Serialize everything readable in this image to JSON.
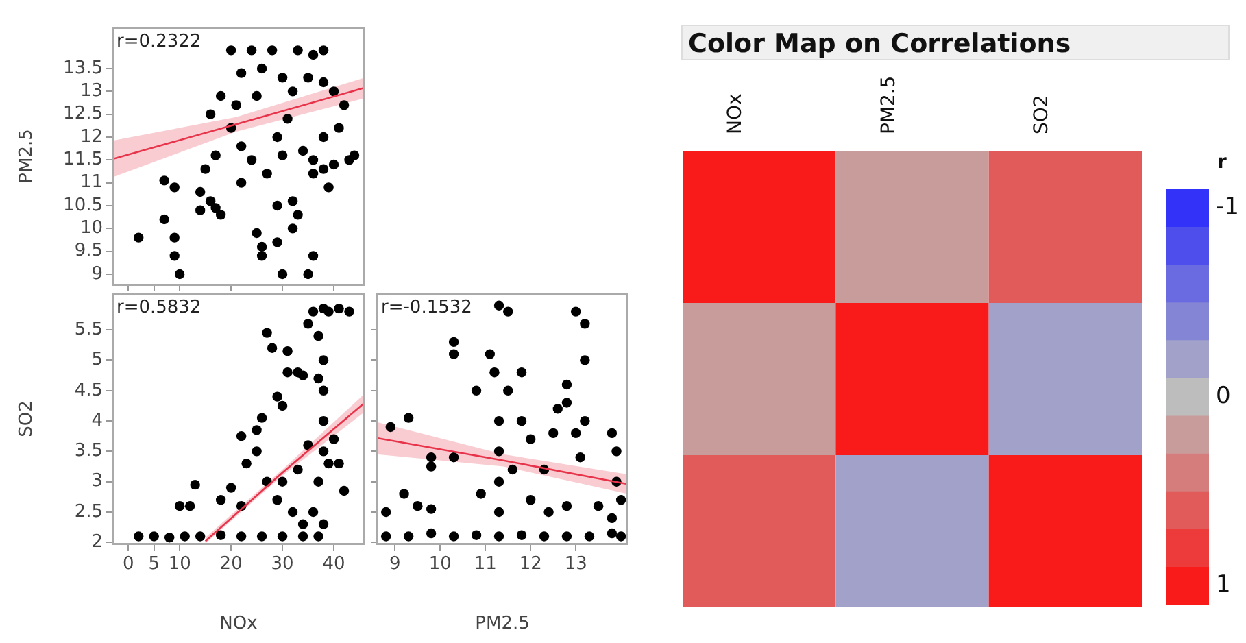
{
  "chart_data": [
    {
      "type": "scatter",
      "ylabel": "PM2.5",
      "annotations": [
        "r=0.2322"
      ],
      "tick_labels": "y",
      "xlim": [
        -3.1,
        46
      ],
      "xticks": [
        0,
        5,
        10,
        20,
        30,
        40
      ],
      "ylim": [
        8.76,
        14.4
      ],
      "yticks": [
        9,
        9.5,
        10,
        10.5,
        11,
        11.5,
        12,
        12.5,
        13,
        13.5
      ],
      "series": [
        {
          "type": "scatter",
          "marker": "circle",
          "color": "#000000",
          "x": [
            2,
            7,
            7,
            9,
            9,
            9,
            10,
            14,
            14,
            16,
            17,
            18,
            15,
            17,
            16,
            18,
            20,
            21,
            22,
            24,
            22,
            25,
            26,
            26,
            29,
            30,
            35,
            36,
            32,
            32,
            33,
            29,
            27,
            30,
            31,
            30,
            26,
            24,
            28,
            33,
            36,
            38,
            35,
            38,
            40,
            42,
            41,
            36,
            38,
            40,
            43,
            44,
            34,
            38,
            29,
            32,
            39,
            36,
            20,
            22,
            25
          ],
          "values": [
            9.8,
            10.2,
            11.05,
            10.9,
            9.8,
            9.4,
            9.0,
            10.4,
            10.8,
            10.6,
            10.45,
            10.3,
            11.3,
            11.6,
            12.5,
            12.9,
            12.2,
            12.7,
            11.8,
            11.5,
            11.0,
            9.9,
            9.6,
            9.4,
            9.7,
            9.0,
            9.0,
            9.4,
            10.0,
            10.6,
            10.3,
            10.5,
            11.2,
            11.6,
            12.4,
            13.3,
            13.5,
            13.9,
            13.9,
            13.9,
            13.8,
            13.9,
            13.3,
            13.2,
            13.0,
            12.7,
            12.2,
            11.5,
            11.3,
            11.4,
            11.5,
            11.6,
            11.7,
            12.0,
            12.0,
            13.0,
            10.9,
            11.2,
            13.9,
            13.4,
            12.9
          ]
        },
        {
          "type": "line",
          "color": "#e8344a",
          "x": [
            -3.1,
            21,
            46
          ],
          "values": [
            11.52,
            12.28,
            13.08
          ],
          "lower": [
            11.12,
            12.12,
            12.85
          ],
          "upper": [
            11.92,
            12.44,
            13.3
          ]
        }
      ]
    },
    {
      "type": "scatter",
      "xlabel": "NOx",
      "ylabel": "SO2",
      "annotations": [
        "r=0.5832"
      ],
      "xlim": [
        -3.1,
        46
      ],
      "xticks": [
        0,
        5,
        10,
        20,
        30,
        40
      ],
      "ylim": [
        1.97,
        6.1
      ],
      "yticks": [
        2,
        2.5,
        3,
        3.5,
        4,
        4.5,
        5,
        5.5
      ],
      "series": [
        {
          "type": "scatter",
          "marker": "circle",
          "color": "#000000",
          "x": [
            2,
            5,
            8,
            11,
            14,
            18,
            22,
            26,
            30,
            34,
            37,
            10,
            12,
            13,
            18,
            20,
            22,
            22,
            23,
            25,
            26,
            25,
            27,
            28,
            29,
            30,
            31,
            31,
            33,
            34,
            35,
            36,
            38,
            39,
            41,
            43,
            38,
            38,
            38,
            38,
            37,
            36,
            39,
            40,
            41,
            42,
            35,
            33,
            30,
            29,
            32,
            27,
            34,
            38,
            37,
            37
          ],
          "values": [
            2.1,
            2.1,
            2.08,
            2.1,
            2.1,
            2.12,
            2.1,
            2.1,
            2.1,
            2.1,
            2.1,
            2.6,
            2.6,
            2.95,
            2.7,
            2.9,
            2.6,
            3.75,
            3.3,
            3.85,
            4.05,
            3.5,
            5.45,
            5.2,
            4.4,
            4.25,
            5.15,
            4.8,
            4.8,
            4.75,
            5.6,
            5.8,
            5.85,
            5.8,
            5.85,
            5.8,
            5.0,
            4.5,
            4.0,
            3.5,
            3.0,
            2.5,
            3.3,
            3.7,
            3.3,
            2.85,
            3.6,
            3.2,
            3.0,
            2.7,
            2.5,
            3.0,
            2.3,
            2.3,
            5.4,
            4.7
          ]
        },
        {
          "type": "line",
          "color": "#e8344a",
          "x": [
            15,
            30,
            46
          ],
          "values": [
            2.02,
            3.15,
            4.3
          ],
          "lower": [
            1.98,
            3.1,
            4.15
          ],
          "upper": [
            2.08,
            3.2,
            4.45
          ]
        }
      ]
    },
    {
      "type": "scatter",
      "xlabel": "PM2.5",
      "annotations": [
        "r=-0.1532"
      ],
      "tick_labels": "x",
      "xlim": [
        8.6,
        14.15
      ],
      "xticks": [
        9,
        10,
        11,
        12,
        13
      ],
      "ylim": [
        1.97,
        6.1
      ],
      "yticks": [
        2,
        2.5,
        3,
        3.5,
        4,
        4.5,
        5,
        5.5
      ],
      "series": [
        {
          "type": "scatter",
          "marker": "circle",
          "color": "#000000",
          "x": [
            8.8,
            9.3,
            9.8,
            10.3,
            10.8,
            11.3,
            11.8,
            12.3,
            12.8,
            13.3,
            13.8,
            14.0,
            8.8,
            8.9,
            9.3,
            9.2,
            9.5,
            9.8,
            9.8,
            9.8,
            10.3,
            10.3,
            10.3,
            10.8,
            11.1,
            11.3,
            11.5,
            11.2,
            11.3,
            11.3,
            11.3,
            11.3,
            11.5,
            11.6,
            11.8,
            11.8,
            12.0,
            12.0,
            12.3,
            12.5,
            12.6,
            12.8,
            12.8,
            13.0,
            13.2,
            13.2,
            13.2,
            13.1,
            13.0,
            12.8,
            13.5,
            13.8,
            13.9,
            13.9,
            14.0,
            13.8,
            12.4,
            10.9
          ],
          "values": [
            2.1,
            2.1,
            2.15,
            2.1,
            2.12,
            2.1,
            2.12,
            2.1,
            2.1,
            2.1,
            2.15,
            2.1,
            2.5,
            3.9,
            4.05,
            2.8,
            2.6,
            2.55,
            3.4,
            3.25,
            3.4,
            5.3,
            5.1,
            4.5,
            5.1,
            5.9,
            5.8,
            4.8,
            4.0,
            3.5,
            3.0,
            2.5,
            4.5,
            3.2,
            4.8,
            4.0,
            3.7,
            2.7,
            3.2,
            3.8,
            4.2,
            4.3,
            4.6,
            5.8,
            5.6,
            5.0,
            4.0,
            3.4,
            3.8,
            2.6,
            2.6,
            2.4,
            3.0,
            3.5,
            2.7,
            3.8,
            2.5,
            2.8
          ]
        },
        {
          "type": "line",
          "color": "#e8344a",
          "x": [
            8.6,
            11.4,
            14.15
          ],
          "values": [
            3.72,
            3.35,
            2.96
          ],
          "lower": [
            3.45,
            3.25,
            2.8
          ],
          "upper": [
            3.98,
            3.45,
            3.12
          ]
        }
      ]
    },
    {
      "type": "heatmap",
      "title": "Color Map on Correlations",
      "categories": [
        "NOx",
        "PM2.5",
        "SO2"
      ],
      "y_categories": [
        null,
        null,
        null
      ],
      "cells": [
        [
          1,
          0.2322,
          0.5832
        ],
        [
          0.2322,
          1,
          -0.1532
        ],
        [
          0.5832,
          -0.1532,
          1
        ]
      ],
      "clabel": "r",
      "clim": [
        -1.1,
        1.1
      ],
      "cticks": [
        -1,
        0,
        1
      ]
    }
  ]
}
